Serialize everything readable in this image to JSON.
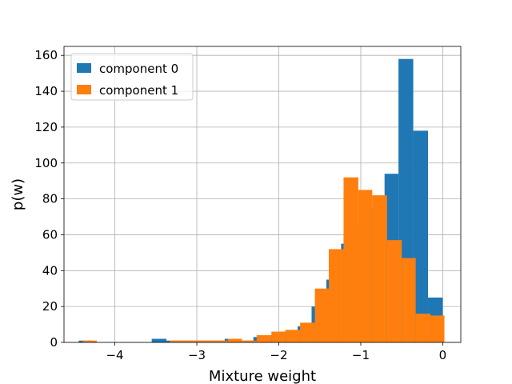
{
  "chart_data": {
    "type": "histogram",
    "xlabel": "Mixture weight",
    "ylabel": "p(w)",
    "xlim": [
      -4.62,
      0.22
    ],
    "ylim": [
      0,
      165
    ],
    "xticks": [
      -4,
      -3,
      -2,
      -1,
      0
    ],
    "xtick_labels": [
      "−4",
      "−3",
      "−2",
      "−1",
      "0"
    ],
    "yticks": [
      0,
      20,
      40,
      60,
      80,
      100,
      120,
      140,
      160
    ],
    "ytick_labels": [
      "0",
      "20",
      "40",
      "60",
      "80",
      "100",
      "120",
      "140",
      "160"
    ],
    "grid": true,
    "legend_position": "top-left",
    "series": [
      {
        "name": "component 0",
        "color": "#1f77b4",
        "bins": [
          {
            "x0": -4.44,
            "x1": -4.27,
            "count": 1
          },
          {
            "x0": -3.55,
            "x1": -3.37,
            "count": 2
          },
          {
            "x0": -3.37,
            "x1": -3.19,
            "count": 1
          },
          {
            "x0": -3.19,
            "x1": -3.01,
            "count": 1
          },
          {
            "x0": -3.01,
            "x1": -2.84,
            "count": 1
          },
          {
            "x0": -2.84,
            "x1": -2.66,
            "count": 1
          },
          {
            "x0": -2.66,
            "x1": -2.48,
            "count": 2
          },
          {
            "x0": -2.48,
            "x1": -2.31,
            "count": 1
          },
          {
            "x0": -2.31,
            "x1": -2.13,
            "count": 3
          },
          {
            "x0": -2.13,
            "x1": -1.95,
            "count": 4
          },
          {
            "x0": -1.95,
            "x1": -1.77,
            "count": 6
          },
          {
            "x0": -1.77,
            "x1": -1.6,
            "count": 9
          },
          {
            "x0": -1.6,
            "x1": -1.42,
            "count": 20
          },
          {
            "x0": -1.42,
            "x1": -1.24,
            "count": 35
          },
          {
            "x0": -1.24,
            "x1": -1.07,
            "count": 55
          },
          {
            "x0": -1.07,
            "x1": -0.89,
            "count": 65
          },
          {
            "x0": -0.89,
            "x1": -0.71,
            "count": 75
          },
          {
            "x0": -0.71,
            "x1": -0.54,
            "count": 94
          },
          {
            "x0": -0.54,
            "x1": -0.36,
            "count": 158
          },
          {
            "x0": -0.36,
            "x1": -0.18,
            "count": 118
          },
          {
            "x0": -0.18,
            "x1": 0.0,
            "count": 25
          }
        ]
      },
      {
        "name": "component 1",
        "color": "#ff7f0e",
        "bins": [
          {
            "x0": -4.39,
            "x1": -4.22,
            "count": 1
          },
          {
            "x0": -3.33,
            "x1": -3.15,
            "count": 1
          },
          {
            "x0": -3.15,
            "x1": -2.98,
            "count": 1
          },
          {
            "x0": -2.98,
            "x1": -2.8,
            "count": 1
          },
          {
            "x0": -2.8,
            "x1": -2.62,
            "count": 1
          },
          {
            "x0": -2.62,
            "x1": -2.45,
            "count": 2
          },
          {
            "x0": -2.45,
            "x1": -2.27,
            "count": 1
          },
          {
            "x0": -2.27,
            "x1": -2.09,
            "count": 4
          },
          {
            "x0": -2.09,
            "x1": -1.92,
            "count": 6
          },
          {
            "x0": -1.92,
            "x1": -1.74,
            "count": 7
          },
          {
            "x0": -1.74,
            "x1": -1.56,
            "count": 11
          },
          {
            "x0": -1.56,
            "x1": -1.39,
            "count": 30
          },
          {
            "x0": -1.39,
            "x1": -1.21,
            "count": 52
          },
          {
            "x0": -1.21,
            "x1": -1.03,
            "count": 92
          },
          {
            "x0": -1.03,
            "x1": -0.86,
            "count": 85
          },
          {
            "x0": -0.86,
            "x1": -0.68,
            "count": 82
          },
          {
            "x0": -0.68,
            "x1": -0.5,
            "count": 57
          },
          {
            "x0": -0.5,
            "x1": -0.33,
            "count": 47
          },
          {
            "x0": -0.33,
            "x1": -0.15,
            "count": 16
          },
          {
            "x0": -0.15,
            "x1": 0.02,
            "count": 15
          }
        ]
      }
    ]
  }
}
